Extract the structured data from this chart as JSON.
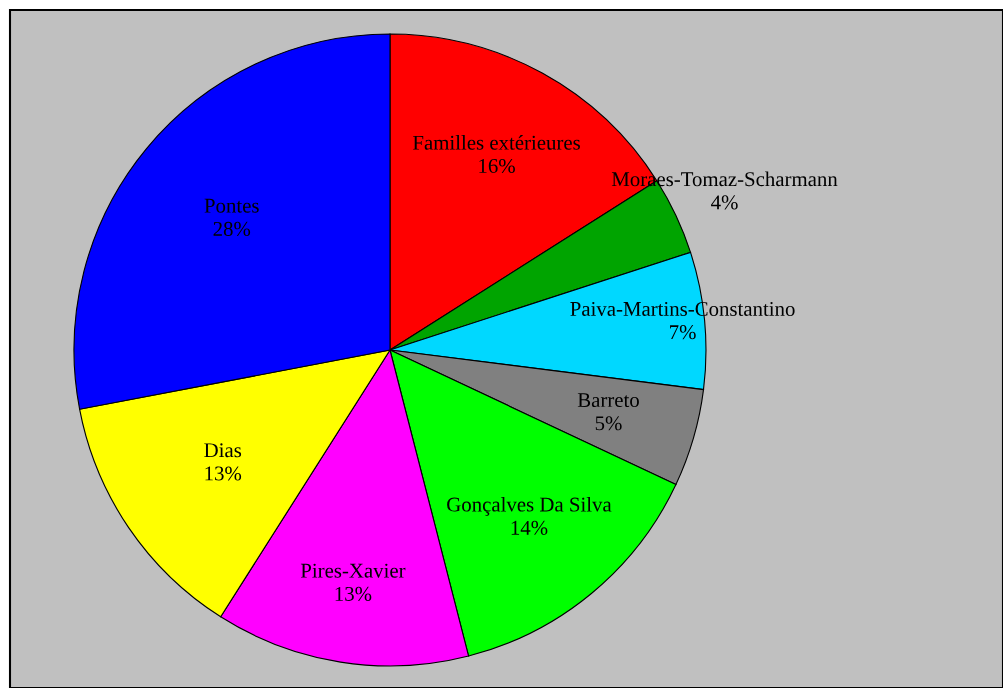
{
  "chart_data": {
    "type": "pie",
    "categories": [
      "Familles extérieures",
      "Moraes-Tomaz-Scharmann",
      "Paiva-Martins-Constantino",
      "Barreto",
      "Gonçalves Da Silva",
      "Pires-Xavier",
      "Dias",
      "Pontes"
    ],
    "values": [
      16,
      4,
      7,
      5,
      14,
      13,
      13,
      28
    ],
    "value_labels": [
      "16%",
      "4%",
      "7%",
      "5%",
      "14%",
      "13%",
      "13%",
      "28%"
    ],
    "colors": [
      "#ff0000",
      "#00a400",
      "#00d8ff",
      "#808080",
      "#00ff00",
      "#ff00ff",
      "#ffff00",
      "#0000ff"
    ],
    "legend": false
  }
}
